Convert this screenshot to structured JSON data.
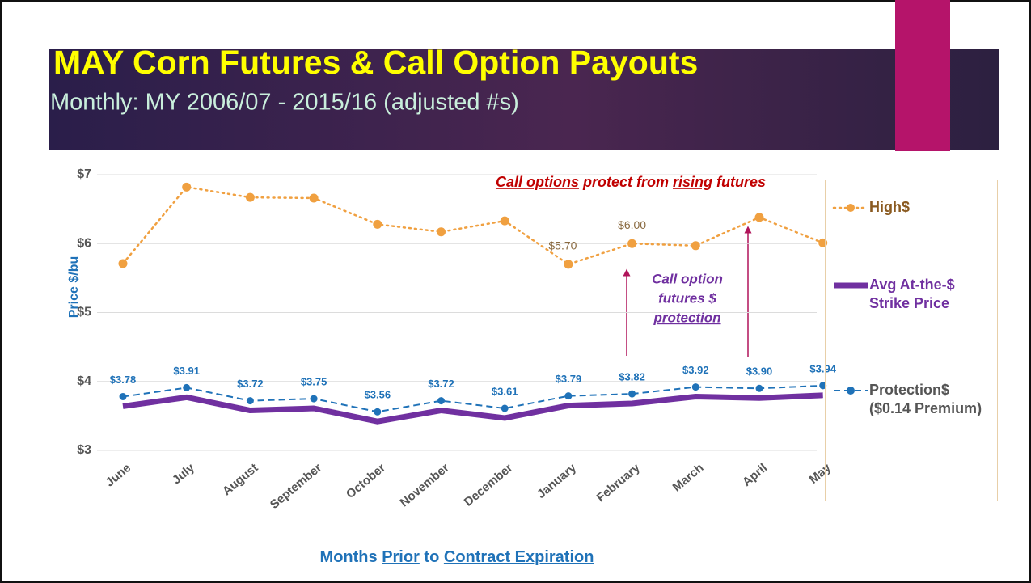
{
  "chart_data": {
    "type": "line",
    "title": "MAY Corn Futures & Call Option Payouts",
    "subtitle": "Monthly: MY 2006/07 - 2015/16 (adjusted #s)",
    "y_label": "Price $/bu",
    "x_label_parts": [
      "Months ",
      "Prior",
      " to ",
      "Contract Expiration"
    ],
    "annotation_top_parts": [
      "Call options",
      " protect from ",
      "rising",
      " futures"
    ],
    "annotation_mid_parts": [
      "Call option",
      "futures $",
      "protection"
    ],
    "categories": [
      "June",
      "July",
      "August",
      "September",
      "October",
      "November",
      "December",
      "January",
      "February",
      "March",
      "April",
      "May"
    ],
    "ylim": [
      3,
      7
    ],
    "yticks": [
      {
        "value": 3,
        "label": "$3"
      },
      {
        "value": 4,
        "label": "$4"
      },
      {
        "value": 5,
        "label": "$5"
      },
      {
        "value": 6,
        "label": "$6"
      },
      {
        "value": 7,
        "label": "$7"
      }
    ],
    "grid": true,
    "legend": "right",
    "series": [
      {
        "name": "High$",
        "color": "#f0a040",
        "style": "dotted",
        "values": [
          5.71,
          6.82,
          6.67,
          6.66,
          6.28,
          6.17,
          6.33,
          5.7,
          6.0,
          5.97,
          6.38,
          6.01
        ],
        "value_labels": [
          null,
          null,
          null,
          null,
          null,
          null,
          null,
          "$5.70",
          "$6.00",
          null,
          null,
          null
        ]
      },
      {
        "name": "Avg At-the-$ Strike Price",
        "color": "#7030a0",
        "style": "thick",
        "values": [
          3.64,
          3.77,
          3.58,
          3.61,
          3.42,
          3.58,
          3.47,
          3.65,
          3.68,
          3.78,
          3.76,
          3.8
        ]
      },
      {
        "name": "Protection$ ($0.14 Premium)",
        "color": "#1f72b8",
        "style": "dashed",
        "values": [
          3.78,
          3.91,
          3.72,
          3.75,
          3.56,
          3.72,
          3.61,
          3.79,
          3.82,
          3.92,
          3.9,
          3.94
        ],
        "value_labels": [
          "$3.78",
          "$3.91",
          "$3.72",
          "$3.75",
          "$3.56",
          "$3.72",
          "$3.61",
          "$3.79",
          "$3.82",
          "$3.92",
          "$3.90",
          "$3.94"
        ]
      }
    ]
  }
}
